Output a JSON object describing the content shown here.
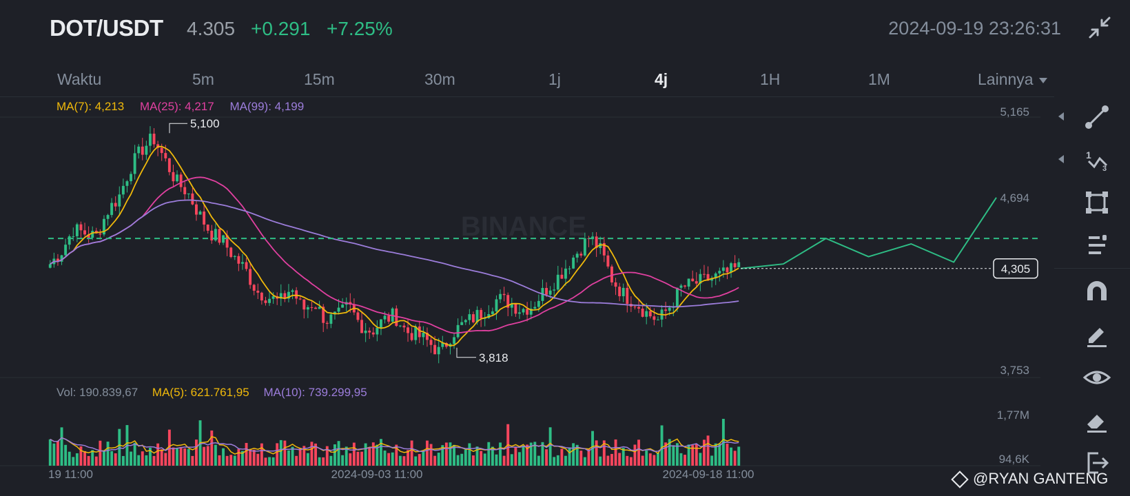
{
  "header": {
    "pair": "DOT/USDT",
    "last_price": "4.305",
    "change": "+0.291",
    "change_pct": "+7.25%",
    "datetime": "2024-09-19 23:26:31",
    "fullscreen_icon": "collapse-arrows-icon"
  },
  "tabs": [
    {
      "label": "Waktu",
      "active": false
    },
    {
      "label": "5m",
      "active": false
    },
    {
      "label": "15m",
      "active": false
    },
    {
      "label": "30m",
      "active": false
    },
    {
      "label": "1j",
      "active": false
    },
    {
      "label": "4j",
      "active": true
    },
    {
      "label": "1H",
      "active": false
    },
    {
      "label": "1M",
      "active": false
    },
    {
      "label": "Lainnya",
      "active": false
    }
  ],
  "ma_legend": {
    "ma7": "MA(7): 4,213",
    "ma25": "MA(25): 4,217",
    "ma99": "MA(99): 4,199"
  },
  "volume_legend": {
    "vol": "Vol: 190.839,67",
    "ma5": "MA(5): 621.761,95",
    "ma10": "MA(10): 739.299,95"
  },
  "colors": {
    "up": "#2ebd85",
    "down": "#f6465d",
    "ma7": "#f0b90b",
    "ma25": "#e040a0",
    "ma99": "#9c7ddb",
    "drawing": "#2ebd85",
    "grid": "#2b2f36",
    "axis_text": "#848e9c"
  },
  "chart_data": {
    "type": "candlestick",
    "watermark": "BINANCE",
    "price_axis": [
      "5,165",
      "4,694",
      "4,305",
      "3,753"
    ],
    "price_range": [
      3.753,
      5.165
    ],
    "volume_axis": [
      "1,77M",
      "94,6K"
    ],
    "volume_range": [
      94600,
      1770000
    ],
    "time_axis": [
      "19 11:00",
      "2024-09-03 11:00",
      "2024-09-18 11:00"
    ],
    "annotations": {
      "high": {
        "label": "5,100",
        "value": 5.1
      },
      "low": {
        "label": "3,818",
        "value": 3.818
      },
      "current_price_tag": {
        "label": "4,305",
        "value": 4.305
      }
    },
    "horizontal_line": 4.47,
    "close_path": [
      4.33,
      4.4,
      4.52,
      4.5,
      4.48,
      4.62,
      4.7,
      4.86,
      4.96,
      5.02,
      4.9,
      4.78,
      4.72,
      4.6,
      4.5,
      4.46,
      4.37,
      4.3,
      4.18,
      4.15,
      4.12,
      4.2,
      4.08,
      4.12,
      4.02,
      4.04,
      4.1,
      4.0,
      3.96,
      4.02,
      4.05,
      3.96,
      3.94,
      3.9,
      3.84,
      3.95,
      4.0,
      4.04,
      4.08,
      4.14,
      4.12,
      4.08,
      4.1,
      4.18,
      4.24,
      4.32,
      4.4,
      4.48,
      4.4,
      4.24,
      4.16,
      4.12,
      4.06,
      4.02,
      4.1,
      4.2,
      4.22,
      4.24,
      4.26,
      4.28,
      4.31
    ],
    "drawing_path": [
      4.305,
      4.33,
      4.47,
      4.37,
      4.44,
      4.34,
      4.694
    ]
  },
  "toolbar": [
    {
      "icon": "trend-line-icon",
      "has_submenu": true
    },
    {
      "icon": "fibonacci-icon",
      "has_submenu": true
    },
    {
      "icon": "rectangle-icon",
      "has_submenu": false
    },
    {
      "icon": "text-lines-icon",
      "has_submenu": false
    },
    {
      "icon": "magnet-icon",
      "has_submenu": false
    },
    {
      "icon": "pencil-lock-icon",
      "has_submenu": false
    },
    {
      "icon": "eye-icon",
      "has_submenu": false
    },
    {
      "icon": "eraser-icon",
      "has_submenu": false
    },
    {
      "icon": "exit-icon",
      "has_submenu": false
    }
  ],
  "watermark_credit": "@RYAN GANTENG"
}
